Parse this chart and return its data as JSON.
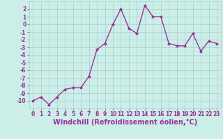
{
  "x": [
    0,
    1,
    2,
    3,
    4,
    5,
    6,
    7,
    8,
    9,
    10,
    11,
    12,
    13,
    14,
    15,
    16,
    17,
    18,
    19,
    20,
    21,
    22,
    23
  ],
  "y": [
    -10,
    -9.5,
    -10.5,
    -9.5,
    -8.5,
    -8.3,
    -8.3,
    -6.8,
    -3.3,
    -2.5,
    0.0,
    2.0,
    -0.5,
    -1.2,
    2.5,
    1.0,
    1.0,
    -2.5,
    -2.8,
    -2.8,
    -1.2,
    -3.5,
    -2.2,
    -2.5
  ],
  "line_color": "#993399",
  "marker": "D",
  "marker_size": 2,
  "bg_color": "#cceee8",
  "grid_color": "#aacccc",
  "xlabel": "Windchill (Refroidissement éolien,°C)",
  "xlim": [
    -0.5,
    23.5
  ],
  "ylim": [
    -11,
    3
  ],
  "yticks": [
    2,
    1,
    0,
    -1,
    -2,
    -3,
    -4,
    -5,
    -6,
    -7,
    -8,
    -9,
    -10
  ],
  "xticks": [
    0,
    1,
    2,
    3,
    4,
    5,
    6,
    7,
    8,
    9,
    10,
    11,
    12,
    13,
    14,
    15,
    16,
    17,
    18,
    19,
    20,
    21,
    22,
    23
  ],
  "tick_label_size": 5.5,
  "xlabel_size": 7,
  "line_width": 1.0
}
